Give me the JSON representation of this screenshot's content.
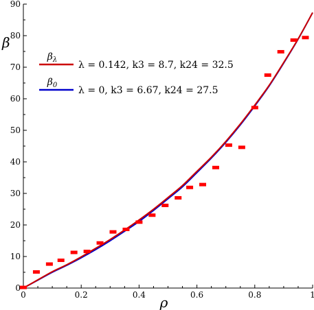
{
  "chart_data": {
    "type": "line",
    "xlabel": "ρ",
    "ylabel": "β",
    "xlim": [
      0,
      1
    ],
    "ylim": [
      0,
      90
    ],
    "x_ticks": [
      0,
      0.2,
      0.4,
      0.6,
      0.8,
      1
    ],
    "x_tick_labels": [
      "0",
      "0.2",
      "0.4",
      "0.6",
      "0.8",
      "1"
    ],
    "y_ticks": [
      0,
      10,
      20,
      30,
      40,
      50,
      60,
      70,
      80,
      90
    ],
    "y_tick_labels": [
      "0",
      "10",
      "20",
      "30",
      "40",
      "50",
      "60",
      "70",
      "80",
      "90"
    ],
    "grid": false,
    "legend_position": "top-left",
    "series": [
      {
        "name": "β_λ",
        "name_base": "β",
        "name_sub": "λ",
        "params": "λ = 0.142, k3 = 8.7, k24 = 32.5",
        "color": "#cc0000",
        "x": [
          0,
          0.05,
          0.1,
          0.15,
          0.2,
          0.25,
          0.3,
          0.35,
          0.4,
          0.45,
          0.5,
          0.55,
          0.6,
          0.65,
          0.7,
          0.75,
          0.8,
          0.85,
          0.9,
          0.95,
          1.0
        ],
        "y": [
          0,
          2.6,
          5.2,
          7.4,
          9.9,
          12.6,
          15.4,
          18.4,
          21.6,
          25.0,
          28.7,
          32.5,
          37.0,
          41.5,
          46.5,
          52.0,
          58.0,
          64.3,
          71.5,
          79.0,
          87.3
        ]
      },
      {
        "name": "β_0",
        "name_base": "β",
        "name_sub": "0",
        "params": "λ = 0, k3 = 6.67, k24 = 27.5",
        "color": "#0000cc",
        "x": [
          0,
          0.05,
          0.1,
          0.15,
          0.2,
          0.25,
          0.3,
          0.35,
          0.4,
          0.45,
          0.5,
          0.55,
          0.6,
          0.65,
          0.7,
          0.75,
          0.8,
          0.85,
          0.9,
          0.95,
          1.0
        ],
        "y": [
          0,
          2.5,
          5.0,
          7.2,
          9.6,
          12.2,
          15.0,
          18.0,
          21.1,
          24.6,
          28.3,
          32.1,
          36.6,
          41.2,
          46.2,
          51.7,
          57.7,
          64.1,
          71.3,
          78.9,
          87.3
        ]
      }
    ],
    "points": {
      "color": "#ff0000",
      "x": [
        0.0,
        0.045,
        0.09,
        0.13,
        0.175,
        0.22,
        0.265,
        0.31,
        0.355,
        0.4,
        0.445,
        0.49,
        0.535,
        0.575,
        0.62,
        0.665,
        0.71,
        0.755,
        0.8,
        0.845,
        0.89,
        0.935,
        0.975
      ],
      "y": [
        0.2,
        5.1,
        7.6,
        8.8,
        11.3,
        11.6,
        14.3,
        17.8,
        18.6,
        20.9,
        23.1,
        26.2,
        28.6,
        31.9,
        32.8,
        38.2,
        45.3,
        44.6,
        57.2,
        67.5,
        74.9,
        78.6,
        79.4
      ]
    }
  }
}
